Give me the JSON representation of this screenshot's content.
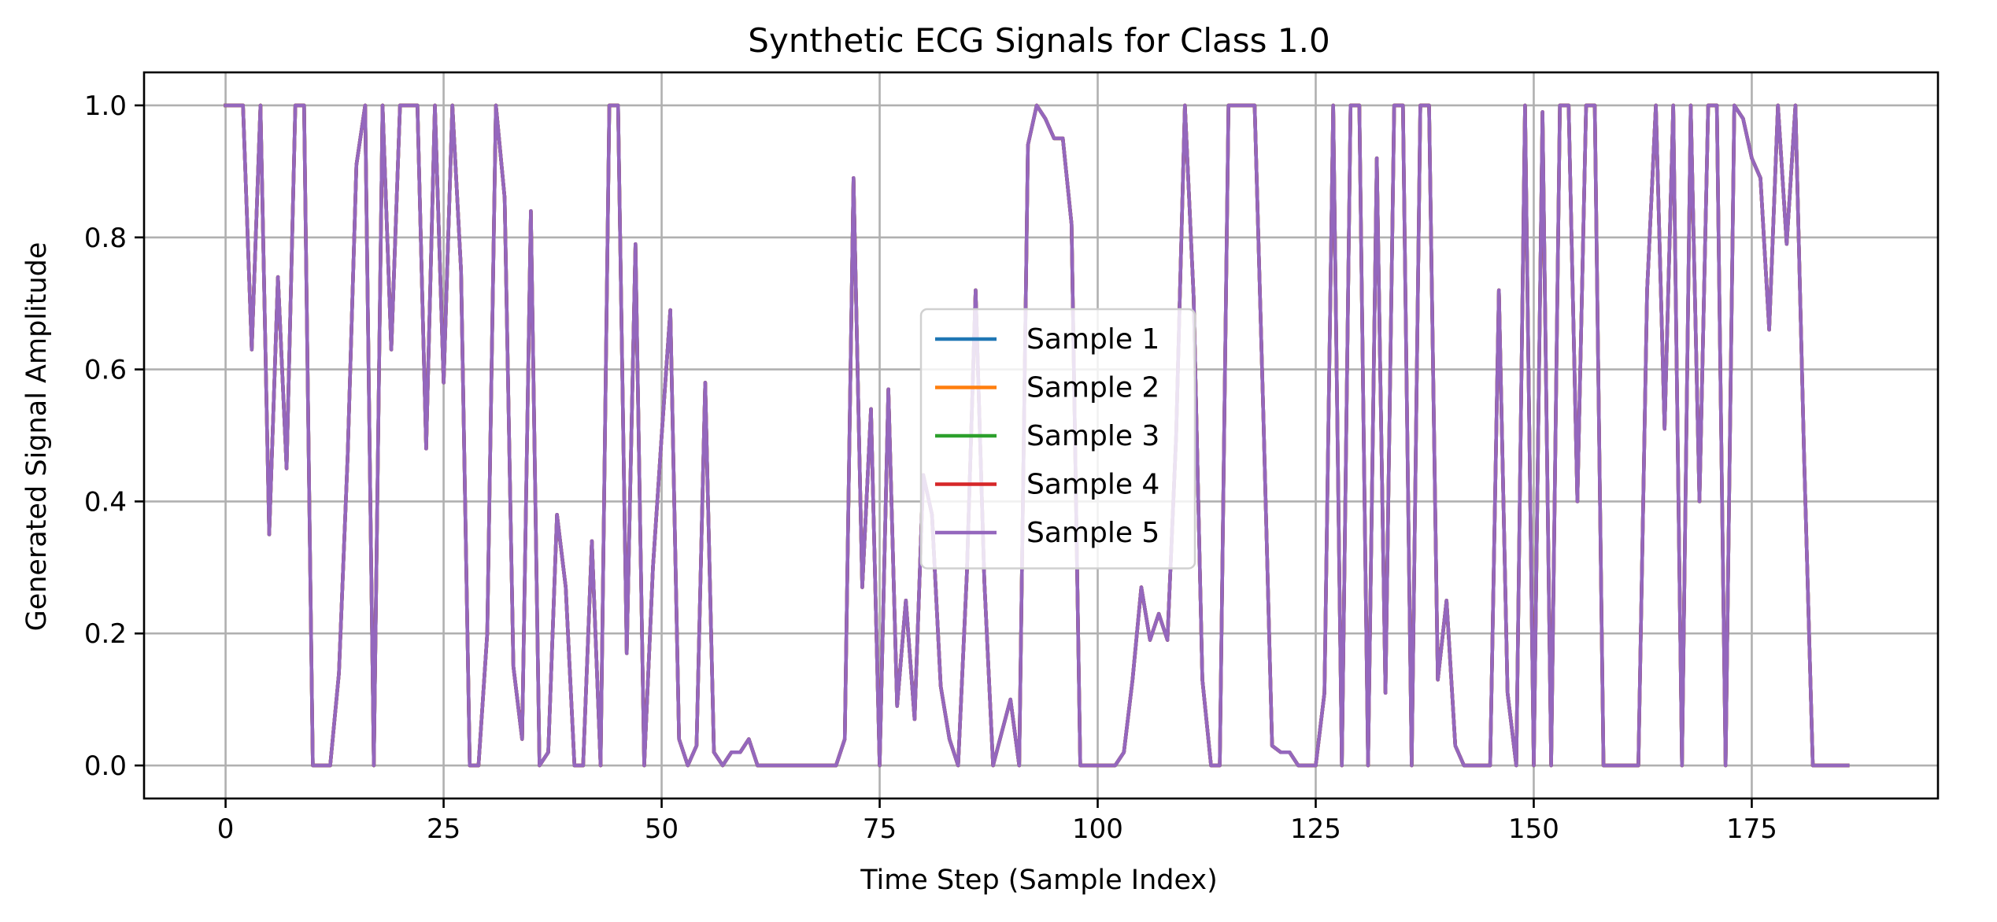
{
  "chart_data": {
    "type": "line",
    "title": "Synthetic ECG Signals for Class 1.0",
    "xlabel": "Time Step (Sample Index)",
    "ylabel": "Generated Signal Amplitude",
    "xlim": [
      -9.35,
      196.35
    ],
    "ylim": [
      -0.05,
      1.05
    ],
    "xticks": [
      0,
      25,
      50,
      75,
      100,
      125,
      150,
      175
    ],
    "xtick_labels": [
      "0",
      "25",
      "50",
      "75",
      "100",
      "125",
      "150",
      "175"
    ],
    "yticks": [
      0.0,
      0.2,
      0.4,
      0.6,
      0.8,
      1.0
    ],
    "ytick_labels": [
      "0.0",
      "0.2",
      "0.4",
      "0.6",
      "0.8",
      "1.0"
    ],
    "grid": true,
    "legend_position": "center",
    "x": [
      0,
      1,
      2,
      3,
      4,
      5,
      6,
      7,
      8,
      9,
      10,
      11,
      12,
      13,
      14,
      15,
      16,
      17,
      18,
      19,
      20,
      21,
      22,
      23,
      24,
      25,
      26,
      27,
      28,
      29,
      30,
      31,
      32,
      33,
      34,
      35,
      36,
      37,
      38,
      39,
      40,
      41,
      42,
      43,
      44,
      45,
      46,
      47,
      48,
      49,
      50,
      51,
      52,
      53,
      54,
      55,
      56,
      57,
      58,
      59,
      60,
      61,
      62,
      63,
      64,
      65,
      66,
      67,
      68,
      69,
      70,
      71,
      72,
      73,
      74,
      75,
      76,
      77,
      78,
      79,
      80,
      81,
      82,
      83,
      84,
      85,
      86,
      87,
      88,
      89,
      90,
      91,
      92,
      93,
      94,
      95,
      96,
      97,
      98,
      99,
      100,
      101,
      102,
      103,
      104,
      105,
      106,
      107,
      108,
      109,
      110,
      111,
      112,
      113,
      114,
      115,
      116,
      117,
      118,
      119,
      120,
      121,
      122,
      123,
      124,
      125,
      126,
      127,
      128,
      129,
      130,
      131,
      132,
      133,
      134,
      135,
      136,
      137,
      138,
      139,
      140,
      141,
      142,
      143,
      144,
      145,
      146,
      147,
      148,
      149,
      150,
      151,
      152,
      153,
      154,
      155,
      156,
      157,
      158,
      159,
      160,
      161,
      162,
      163,
      164,
      165,
      166,
      167,
      168,
      169,
      170,
      171,
      172,
      173,
      174,
      175,
      176,
      177,
      178,
      179,
      180,
      181,
      182,
      183,
      184,
      185,
      186
    ],
    "series": [
      {
        "name": "Sample 1",
        "color": "#1f77b4",
        "values": [
          1.0,
          1.0,
          1.0,
          0.63,
          1.0,
          0.35,
          0.74,
          0.45,
          1.0,
          1.0,
          0.0,
          0.0,
          0.0,
          0.14,
          0.47,
          0.91,
          1.0,
          0.0,
          1.0,
          0.63,
          1.0,
          1.0,
          1.0,
          0.48,
          1.0,
          0.58,
          1.0,
          0.75,
          0.0,
          0.0,
          0.2,
          1.0,
          0.86,
          0.15,
          0.04,
          0.84,
          0.0,
          0.02,
          0.38,
          0.27,
          0.0,
          0.0,
          0.34,
          0.0,
          1.0,
          1.0,
          0.17,
          0.79,
          0.0,
          0.3,
          0.5,
          0.69,
          0.04,
          0.0,
          0.03,
          0.58,
          0.02,
          0.0,
          0.02,
          0.02,
          0.04,
          0.0,
          0.0,
          0.0,
          0.0,
          0.0,
          0.0,
          0.0,
          0.0,
          0.0,
          0.0,
          0.04,
          0.89,
          0.27,
          0.54,
          0.0,
          0.57,
          0.09,
          0.25,
          0.07,
          0.44,
          0.38,
          0.12,
          0.04,
          0.0,
          0.29,
          0.72,
          0.28,
          0.0,
          0.05,
          0.1,
          0.0,
          0.94,
          1.0,
          0.98,
          0.95,
          0.95,
          0.82,
          0.0,
          0.0,
          0.0,
          0.0,
          0.0,
          0.02,
          0.13,
          0.27,
          0.19,
          0.23,
          0.19,
          0.5,
          1.0,
          0.71,
          0.13,
          0.0,
          0.0,
          1.0,
          1.0,
          1.0,
          1.0,
          0.53,
          0.03,
          0.02,
          0.02,
          0.0,
          0.0,
          0.0,
          0.11,
          1.0,
          0.0,
          1.0,
          1.0,
          0.0,
          0.92,
          0.11,
          1.0,
          1.0,
          0.0,
          1.0,
          1.0,
          0.13,
          0.25,
          0.03,
          0.0,
          0.0,
          0.0,
          0.0,
          0.72,
          0.11,
          0.0,
          1.0,
          0.0,
          0.99,
          0.0,
          1.0,
          1.0,
          0.4,
          1.0,
          1.0,
          0.0,
          0.0,
          0.0,
          0.0,
          0.0,
          0.72,
          1.0,
          0.51,
          1.0,
          0.0,
          1.0,
          0.4,
          1.0,
          1.0,
          0.0,
          1.0,
          0.98,
          0.92,
          0.89,
          0.66,
          1.0,
          0.79,
          1.0,
          0.47,
          0.0,
          0.0,
          0.0,
          0.0,
          0.0
        ]
      },
      {
        "name": "Sample 2",
        "color": "#ff7f0e",
        "values": [
          1.0,
          1.0,
          1.0,
          0.63,
          1.0,
          0.35,
          0.74,
          0.45,
          1.0,
          1.0,
          0.0,
          0.0,
          0.0,
          0.14,
          0.47,
          0.91,
          1.0,
          0.0,
          1.0,
          0.63,
          1.0,
          1.0,
          1.0,
          0.48,
          1.0,
          0.58,
          1.0,
          0.75,
          0.0,
          0.0,
          0.2,
          1.0,
          0.86,
          0.15,
          0.04,
          0.84,
          0.0,
          0.02,
          0.38,
          0.27,
          0.0,
          0.0,
          0.34,
          0.0,
          1.0,
          1.0,
          0.17,
          0.79,
          0.0,
          0.3,
          0.5,
          0.69,
          0.04,
          0.0,
          0.03,
          0.58,
          0.02,
          0.0,
          0.02,
          0.02,
          0.04,
          0.0,
          0.0,
          0.0,
          0.0,
          0.0,
          0.0,
          0.0,
          0.0,
          0.0,
          0.0,
          0.04,
          0.89,
          0.27,
          0.54,
          0.0,
          0.57,
          0.09,
          0.25,
          0.07,
          0.44,
          0.38,
          0.12,
          0.04,
          0.0,
          0.29,
          0.72,
          0.28,
          0.0,
          0.05,
          0.1,
          0.0,
          0.94,
          1.0,
          0.98,
          0.95,
          0.95,
          0.82,
          0.0,
          0.0,
          0.0,
          0.0,
          0.0,
          0.02,
          0.13,
          0.27,
          0.19,
          0.23,
          0.19,
          0.5,
          1.0,
          0.71,
          0.13,
          0.0,
          0.0,
          1.0,
          1.0,
          1.0,
          1.0,
          0.53,
          0.03,
          0.02,
          0.02,
          0.0,
          0.0,
          0.0,
          0.11,
          1.0,
          0.0,
          1.0,
          1.0,
          0.0,
          0.92,
          0.11,
          1.0,
          1.0,
          0.0,
          1.0,
          1.0,
          0.13,
          0.25,
          0.03,
          0.0,
          0.0,
          0.0,
          0.0,
          0.72,
          0.11,
          0.0,
          1.0,
          0.0,
          0.99,
          0.0,
          1.0,
          1.0,
          0.4,
          1.0,
          1.0,
          0.0,
          0.0,
          0.0,
          0.0,
          0.0,
          0.72,
          1.0,
          0.51,
          1.0,
          0.0,
          1.0,
          0.4,
          1.0,
          1.0,
          0.0,
          1.0,
          0.98,
          0.92,
          0.89,
          0.66,
          1.0,
          0.79,
          1.0,
          0.47,
          0.0,
          0.0,
          0.0,
          0.0,
          0.0
        ]
      },
      {
        "name": "Sample 3",
        "color": "#2ca02c",
        "values": [
          1.0,
          1.0,
          1.0,
          0.63,
          1.0,
          0.35,
          0.74,
          0.45,
          1.0,
          1.0,
          0.0,
          0.0,
          0.0,
          0.14,
          0.47,
          0.91,
          1.0,
          0.0,
          1.0,
          0.63,
          1.0,
          1.0,
          1.0,
          0.48,
          1.0,
          0.58,
          1.0,
          0.75,
          0.0,
          0.0,
          0.2,
          1.0,
          0.86,
          0.15,
          0.04,
          0.84,
          0.0,
          0.02,
          0.38,
          0.27,
          0.0,
          0.0,
          0.34,
          0.0,
          1.0,
          1.0,
          0.17,
          0.79,
          0.0,
          0.3,
          0.5,
          0.69,
          0.04,
          0.0,
          0.03,
          0.58,
          0.02,
          0.0,
          0.02,
          0.02,
          0.04,
          0.0,
          0.0,
          0.0,
          0.0,
          0.0,
          0.0,
          0.0,
          0.0,
          0.0,
          0.0,
          0.04,
          0.89,
          0.27,
          0.54,
          0.0,
          0.57,
          0.09,
          0.25,
          0.07,
          0.44,
          0.38,
          0.12,
          0.04,
          0.0,
          0.29,
          0.72,
          0.28,
          0.0,
          0.05,
          0.1,
          0.0,
          0.94,
          1.0,
          0.98,
          0.95,
          0.95,
          0.82,
          0.0,
          0.0,
          0.0,
          0.0,
          0.0,
          0.02,
          0.13,
          0.27,
          0.19,
          0.23,
          0.19,
          0.5,
          1.0,
          0.71,
          0.13,
          0.0,
          0.0,
          1.0,
          1.0,
          1.0,
          1.0,
          0.53,
          0.03,
          0.02,
          0.02,
          0.0,
          0.0,
          0.0,
          0.11,
          1.0,
          0.0,
          1.0,
          1.0,
          0.0,
          0.92,
          0.11,
          1.0,
          1.0,
          0.0,
          1.0,
          1.0,
          0.13,
          0.25,
          0.03,
          0.0,
          0.0,
          0.0,
          0.0,
          0.72,
          0.11,
          0.0,
          1.0,
          0.0,
          0.99,
          0.0,
          1.0,
          1.0,
          0.4,
          1.0,
          1.0,
          0.0,
          0.0,
          0.0,
          0.0,
          0.0,
          0.72,
          1.0,
          0.51,
          1.0,
          0.0,
          1.0,
          0.4,
          1.0,
          1.0,
          0.0,
          1.0,
          0.98,
          0.92,
          0.89,
          0.66,
          1.0,
          0.79,
          1.0,
          0.47,
          0.0,
          0.0,
          0.0,
          0.0,
          0.0
        ]
      },
      {
        "name": "Sample 4",
        "color": "#d62728",
        "values": [
          1.0,
          1.0,
          1.0,
          0.63,
          1.0,
          0.35,
          0.74,
          0.45,
          1.0,
          1.0,
          0.0,
          0.0,
          0.0,
          0.14,
          0.47,
          0.91,
          1.0,
          0.0,
          1.0,
          0.63,
          1.0,
          1.0,
          1.0,
          0.48,
          1.0,
          0.58,
          1.0,
          0.75,
          0.0,
          0.0,
          0.2,
          1.0,
          0.86,
          0.15,
          0.04,
          0.84,
          0.0,
          0.02,
          0.38,
          0.27,
          0.0,
          0.0,
          0.34,
          0.0,
          1.0,
          1.0,
          0.17,
          0.79,
          0.0,
          0.3,
          0.5,
          0.69,
          0.04,
          0.0,
          0.03,
          0.58,
          0.02,
          0.0,
          0.02,
          0.02,
          0.04,
          0.0,
          0.0,
          0.0,
          0.0,
          0.0,
          0.0,
          0.0,
          0.0,
          0.0,
          0.0,
          0.04,
          0.89,
          0.27,
          0.54,
          0.0,
          0.57,
          0.09,
          0.25,
          0.07,
          0.44,
          0.38,
          0.12,
          0.04,
          0.0,
          0.29,
          0.72,
          0.28,
          0.0,
          0.05,
          0.1,
          0.0,
          0.94,
          1.0,
          0.98,
          0.95,
          0.95,
          0.82,
          0.0,
          0.0,
          0.0,
          0.0,
          0.0,
          0.02,
          0.13,
          0.27,
          0.19,
          0.23,
          0.19,
          0.5,
          1.0,
          0.71,
          0.13,
          0.0,
          0.0,
          1.0,
          1.0,
          1.0,
          1.0,
          0.53,
          0.03,
          0.02,
          0.02,
          0.0,
          0.0,
          0.0,
          0.11,
          1.0,
          0.0,
          1.0,
          1.0,
          0.0,
          0.92,
          0.11,
          1.0,
          1.0,
          0.0,
          1.0,
          1.0,
          0.13,
          0.25,
          0.03,
          0.0,
          0.0,
          0.0,
          0.0,
          0.72,
          0.11,
          0.0,
          1.0,
          0.0,
          0.99,
          0.0,
          1.0,
          1.0,
          0.4,
          1.0,
          1.0,
          0.0,
          0.0,
          0.0,
          0.0,
          0.0,
          0.72,
          1.0,
          0.51,
          1.0,
          0.0,
          1.0,
          0.4,
          1.0,
          1.0,
          0.0,
          1.0,
          0.98,
          0.92,
          0.89,
          0.66,
          1.0,
          0.79,
          1.0,
          0.47,
          0.0,
          0.0,
          0.0,
          0.0,
          0.0
        ]
      },
      {
        "name": "Sample 5",
        "color": "#9467bd",
        "values": [
          1.0,
          1.0,
          1.0,
          0.63,
          1.0,
          0.35,
          0.74,
          0.45,
          1.0,
          1.0,
          0.0,
          0.0,
          0.0,
          0.14,
          0.47,
          0.91,
          1.0,
          0.0,
          1.0,
          0.63,
          1.0,
          1.0,
          1.0,
          0.48,
          1.0,
          0.58,
          1.0,
          0.75,
          0.0,
          0.0,
          0.2,
          1.0,
          0.86,
          0.15,
          0.04,
          0.84,
          0.0,
          0.02,
          0.38,
          0.27,
          0.0,
          0.0,
          0.34,
          0.0,
          1.0,
          1.0,
          0.17,
          0.79,
          0.0,
          0.3,
          0.5,
          0.69,
          0.04,
          0.0,
          0.03,
          0.58,
          0.02,
          0.0,
          0.02,
          0.02,
          0.04,
          0.0,
          0.0,
          0.0,
          0.0,
          0.0,
          0.0,
          0.0,
          0.0,
          0.0,
          0.0,
          0.04,
          0.89,
          0.27,
          0.54,
          0.0,
          0.57,
          0.09,
          0.25,
          0.07,
          0.44,
          0.38,
          0.12,
          0.04,
          0.0,
          0.29,
          0.72,
          0.28,
          0.0,
          0.05,
          0.1,
          0.0,
          0.94,
          1.0,
          0.98,
          0.95,
          0.95,
          0.82,
          0.0,
          0.0,
          0.0,
          0.0,
          0.0,
          0.02,
          0.13,
          0.27,
          0.19,
          0.23,
          0.19,
          0.5,
          1.0,
          0.71,
          0.13,
          0.0,
          0.0,
          1.0,
          1.0,
          1.0,
          1.0,
          0.53,
          0.03,
          0.02,
          0.02,
          0.0,
          0.0,
          0.0,
          0.11,
          1.0,
          0.0,
          1.0,
          1.0,
          0.0,
          0.92,
          0.11,
          1.0,
          1.0,
          0.0,
          1.0,
          1.0,
          0.13,
          0.25,
          0.03,
          0.0,
          0.0,
          0.0,
          0.0,
          0.72,
          0.11,
          0.0,
          1.0,
          0.0,
          0.99,
          0.0,
          1.0,
          1.0,
          0.4,
          1.0,
          1.0,
          0.0,
          0.0,
          0.0,
          0.0,
          0.0,
          0.72,
          1.0,
          0.51,
          1.0,
          0.0,
          1.0,
          0.4,
          1.0,
          1.0,
          0.0,
          1.0,
          0.98,
          0.92,
          0.89,
          0.66,
          1.0,
          0.79,
          1.0,
          0.47,
          0.0,
          0.0,
          0.0,
          0.0,
          0.0
        ]
      }
    ]
  }
}
